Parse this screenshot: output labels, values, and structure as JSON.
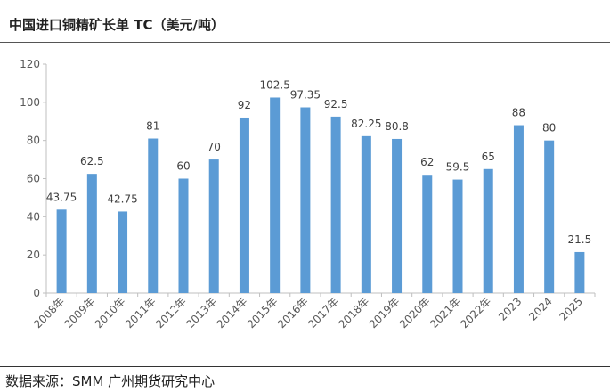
{
  "header": {
    "title": "中国进口铜精矿长单 TC（美元/吨）"
  },
  "footer": {
    "source": "数据来源：SMM 广州期货研究中心"
  },
  "chart_data": {
    "type": "bar",
    "title": "中国进口铜精矿长单 TC（美元/吨）",
    "xlabel": "",
    "ylabel": "",
    "categories": [
      "2008年",
      "2009年",
      "2010年",
      "2011年",
      "2012年",
      "2013年",
      "2014年",
      "2015年",
      "2016年",
      "2017年",
      "2018年",
      "2019年",
      "2020年",
      "2021年",
      "2022年",
      "2023",
      "2024",
      "2025"
    ],
    "values": [
      43.75,
      62.5,
      42.75,
      81,
      60,
      70,
      92,
      102.5,
      97.35,
      92.5,
      82.25,
      80.8,
      62,
      59.5,
      65,
      88,
      80,
      21.5
    ],
    "value_labels": [
      "43.75",
      "62.5",
      "42.75",
      "81",
      "60",
      "70",
      "92",
      "102.5",
      "97.35",
      "92.5",
      "82.25",
      "80.8",
      "62",
      "59.5",
      "65",
      "88",
      "80",
      "21.5"
    ],
    "ylim": [
      0,
      120
    ],
    "yticks": [
      0,
      20,
      40,
      60,
      80,
      100,
      120
    ],
    "grid": false,
    "legend": "none",
    "colors": {
      "bar": "#5b9bd5",
      "axis": "#bfbfbf"
    }
  }
}
